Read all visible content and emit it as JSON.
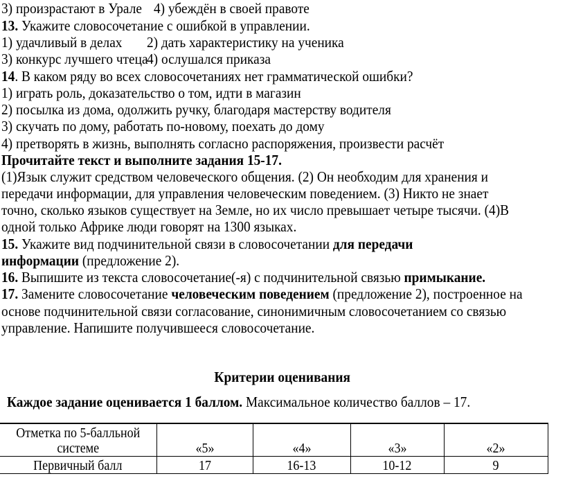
{
  "q12": {
    "opt3": "3) произрастают в Урале",
    "opt4": "4) убеждён в своей правоте"
  },
  "q13": {
    "num": "13.",
    "text": " Укажите словосочетание с ошибкой в управлении.",
    "opt1": "1) удачливый в делах",
    "opt2": "2) дать характеристику на ученика",
    "opt3": "3) конкурс лучшего чтеца",
    "opt4": "4) ослушался приказа"
  },
  "q14": {
    "num": "14",
    "text": ". В каком ряду во всех словосочетаниях нет грамматической ошибки?",
    "opt1": "1) играть роль, доказательство о том, идти в магазин",
    "opt2": "2) посылка из дома, одолжить ручку, благодаря мастерству водителя",
    "opt3": "3) скучать по дому, работать по-новому, поехать до дому",
    "opt4": "4) претворять в жизнь, выполнять согласно распоряжения, произвести расчёт"
  },
  "instruction": "Прочитайте текст и выполните задания 15-17.",
  "passage": [
    "(1)Язык служит средством человеческого общения. (2) Он необходим для хранения и",
    "передачи информации, для управления человеческим поведением. (3) Никто не знает",
    "точно, сколько языков существует на Земле, но их число превышает четыре тысячи. (4)В",
    "одной только Африке люди говорят на 1300 языках."
  ],
  "q15": {
    "num": "15.",
    "text": " Укажите вид подчинительной связи в словосочетании ",
    "bold1": "для передачи",
    "bold2": "информации",
    "text2": " (предложение 2)."
  },
  "q16": {
    "num": "16.",
    "text": " Выпишите из текста словосочетание(-я) с подчинительной связью ",
    "bold": "примыкание."
  },
  "q17": {
    "num": "17.",
    "text": " Замените словосочетание ",
    "bold": "человеческим поведением",
    "text2": " (предложение 2), построенное на",
    "line2": "основе подчинительной связи согласование, синонимичным словосочетанием со связью",
    "line3": "управление. Напишите получившееся словосочетание."
  },
  "criteria": {
    "title": "Критерии оценивания",
    "note_bold": "Каждое задание оценивается 1 баллом.",
    "note": " Максимальное количество баллов – 17.",
    "table": {
      "header_label": "Отметка по 5-балльной системе",
      "grades": [
        "«5»",
        "«4»",
        "«3»",
        "«2»"
      ],
      "row_label": "Первичный балл",
      "scores": [
        "17",
        "16-13",
        "10-12",
        "9"
      ]
    }
  }
}
